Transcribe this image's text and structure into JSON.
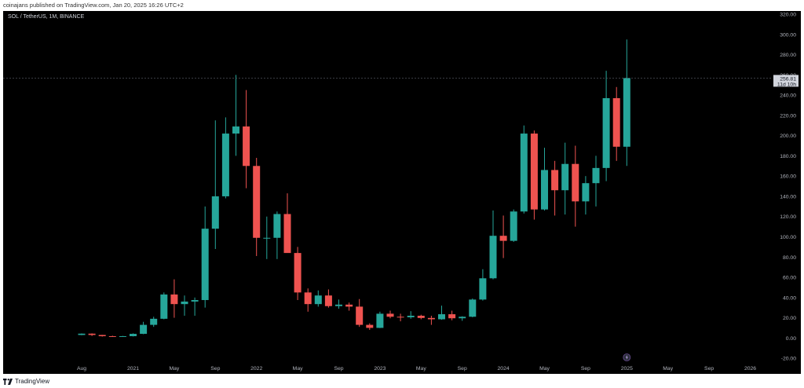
{
  "header": {
    "published": "coinajans published on TradingView.com, Jan 20, 2025 16:26 UTC+2"
  },
  "symbol_info": "SOL / TetherUS, 1M, BINANCE",
  "footer": {
    "brand": "TradingView"
  },
  "colors": {
    "up": "#26a69a",
    "down": "#ef5350",
    "background": "#000000",
    "axis_text": "#b2b5be"
  },
  "last_price": {
    "value": "256.81",
    "countdown": "11d 10h"
  },
  "chart_data": {
    "type": "candlestick",
    "title": "",
    "ylim": [
      -30,
      320
    ],
    "y_ticks": [
      "320.00",
      "300.00",
      "280.00",
      "260.00",
      "240.00",
      "220.00",
      "200.00",
      "180.00",
      "160.00",
      "140.00",
      "120.00",
      "100.00",
      "80.00",
      "60.00",
      "40.00",
      "20.00",
      "0.00",
      "-20.00"
    ],
    "x_ticks": [
      {
        "label": "Aug",
        "month": "2020-08"
      },
      {
        "label": "2021",
        "month": "2021-01"
      },
      {
        "label": "May",
        "month": "2021-05"
      },
      {
        "label": "Sep",
        "month": "2021-09"
      },
      {
        "label": "2022",
        "month": "2022-01"
      },
      {
        "label": "May",
        "month": "2022-05"
      },
      {
        "label": "Sep",
        "month": "2022-09"
      },
      {
        "label": "2023",
        "month": "2023-01"
      },
      {
        "label": "May",
        "month": "2023-05"
      },
      {
        "label": "Sep",
        "month": "2023-09"
      },
      {
        "label": "2024",
        "month": "2024-01"
      },
      {
        "label": "May",
        "month": "2024-05"
      },
      {
        "label": "Sep",
        "month": "2024-09"
      },
      {
        "label": "2025",
        "month": "2025-01"
      },
      {
        "label": "May",
        "month": "2025-05"
      },
      {
        "label": "Sep",
        "month": "2025-09"
      },
      {
        "label": "2026",
        "month": "2026-01"
      }
    ],
    "candles": [
      {
        "t": "2020-08",
        "o": 3.0,
        "h": 4.5,
        "l": 2.8,
        "c": 4.3
      },
      {
        "t": "2020-09",
        "o": 4.3,
        "h": 4.6,
        "l": 2.0,
        "c": 3.0
      },
      {
        "t": "2020-10",
        "o": 3.0,
        "h": 3.1,
        "l": 1.4,
        "c": 1.8
      },
      {
        "t": "2020-11",
        "o": 1.8,
        "h": 2.3,
        "l": 1.1,
        "c": 1.5
      },
      {
        "t": "2020-12",
        "o": 1.5,
        "h": 2.1,
        "l": 1.3,
        "c": 1.8
      },
      {
        "t": "2021-01",
        "o": 1.8,
        "h": 4.5,
        "l": 1.5,
        "c": 4.1
      },
      {
        "t": "2021-02",
        "o": 4.1,
        "h": 16.0,
        "l": 3.8,
        "c": 13.0
      },
      {
        "t": "2021-03",
        "o": 13.0,
        "h": 21.0,
        "l": 11.0,
        "c": 19.0
      },
      {
        "t": "2021-04",
        "o": 19.0,
        "h": 45.0,
        "l": 18.5,
        "c": 43.0
      },
      {
        "t": "2021-05",
        "o": 43.0,
        "h": 58.0,
        "l": 20.0,
        "c": 33.5
      },
      {
        "t": "2021-06",
        "o": 33.5,
        "h": 42.0,
        "l": 22.0,
        "c": 36.0
      },
      {
        "t": "2021-07",
        "o": 36.0,
        "h": 40.0,
        "l": 22.0,
        "c": 37.5
      },
      {
        "t": "2021-08",
        "o": 37.5,
        "h": 130.0,
        "l": 30.0,
        "c": 108.0
      },
      {
        "t": "2021-09",
        "o": 108.0,
        "h": 215.0,
        "l": 88.0,
        "c": 140.0
      },
      {
        "t": "2021-10",
        "o": 140.0,
        "h": 218.0,
        "l": 138.0,
        "c": 202.0
      },
      {
        "t": "2021-11",
        "o": 202.0,
        "h": 260.0,
        "l": 180.0,
        "c": 209.0
      },
      {
        "t": "2021-12",
        "o": 209.0,
        "h": 245.0,
        "l": 148.0,
        "c": 170.0
      },
      {
        "t": "2022-01",
        "o": 170.0,
        "h": 178.0,
        "l": 81.0,
        "c": 99.0
      },
      {
        "t": "2022-02",
        "o": 99.0,
        "h": 120.0,
        "l": 78.0,
        "c": 99.0
      },
      {
        "t": "2022-03",
        "o": 99.0,
        "h": 125.0,
        "l": 78.0,
        "c": 122.5
      },
      {
        "t": "2022-04",
        "o": 122.5,
        "h": 143.0,
        "l": 85.0,
        "c": 84.0
      },
      {
        "t": "2022-05",
        "o": 84.0,
        "h": 90.0,
        "l": 37.5,
        "c": 45.0
      },
      {
        "t": "2022-06",
        "o": 45.0,
        "h": 49.0,
        "l": 26.0,
        "c": 33.5
      },
      {
        "t": "2022-07",
        "o": 33.5,
        "h": 47.0,
        "l": 31.0,
        "c": 42.0
      },
      {
        "t": "2022-08",
        "o": 42.0,
        "h": 48.0,
        "l": 30.0,
        "c": 31.5
      },
      {
        "t": "2022-09",
        "o": 31.5,
        "h": 38.0,
        "l": 29.0,
        "c": 33.0
      },
      {
        "t": "2022-10",
        "o": 33.0,
        "h": 35.0,
        "l": 27.0,
        "c": 31.0
      },
      {
        "t": "2022-11",
        "o": 31.0,
        "h": 38.5,
        "l": 11.0,
        "c": 13.0
      },
      {
        "t": "2022-12",
        "o": 13.0,
        "h": 14.5,
        "l": 8.0,
        "c": 10.0
      },
      {
        "t": "2023-01",
        "o": 10.0,
        "h": 26.0,
        "l": 9.8,
        "c": 24.0
      },
      {
        "t": "2023-02",
        "o": 24.0,
        "h": 27.0,
        "l": 19.5,
        "c": 21.0
      },
      {
        "t": "2023-03",
        "o": 21.0,
        "h": 24.0,
        "l": 16.5,
        "c": 20.5
      },
      {
        "t": "2023-04",
        "o": 20.5,
        "h": 26.5,
        "l": 19.0,
        "c": 22.0
      },
      {
        "t": "2023-05",
        "o": 22.0,
        "h": 23.0,
        "l": 18.5,
        "c": 19.8
      },
      {
        "t": "2023-06",
        "o": 19.8,
        "h": 22.0,
        "l": 13.0,
        "c": 18.5
      },
      {
        "t": "2023-07",
        "o": 18.5,
        "h": 32.0,
        "l": 18.0,
        "c": 23.5
      },
      {
        "t": "2023-08",
        "o": 23.5,
        "h": 27.0,
        "l": 17.5,
        "c": 19.5
      },
      {
        "t": "2023-09",
        "o": 19.5,
        "h": 21.5,
        "l": 17.0,
        "c": 21.0
      },
      {
        "t": "2023-10",
        "o": 21.0,
        "h": 39.0,
        "l": 20.5,
        "c": 38.0
      },
      {
        "t": "2023-11",
        "o": 38.0,
        "h": 68.0,
        "l": 37.0,
        "c": 59.0
      },
      {
        "t": "2023-12",
        "o": 59.0,
        "h": 126.0,
        "l": 58.0,
        "c": 101.0
      },
      {
        "t": "2024-01",
        "o": 101.0,
        "h": 121.0,
        "l": 79.0,
        "c": 96.0
      },
      {
        "t": "2024-02",
        "o": 96.0,
        "h": 127.0,
        "l": 95.0,
        "c": 125.0
      },
      {
        "t": "2024-03",
        "o": 125.0,
        "h": 210.0,
        "l": 123.0,
        "c": 202.0
      },
      {
        "t": "2024-04",
        "o": 202.0,
        "h": 205.0,
        "l": 117.0,
        "c": 127.0
      },
      {
        "t": "2024-05",
        "o": 127.0,
        "h": 188.0,
        "l": 126.0,
        "c": 166.0
      },
      {
        "t": "2024-06",
        "o": 166.0,
        "h": 175.0,
        "l": 121.0,
        "c": 146.0
      },
      {
        "t": "2024-07",
        "o": 146.0,
        "h": 193.0,
        "l": 122.0,
        "c": 172.0
      },
      {
        "t": "2024-08",
        "o": 172.0,
        "h": 190.0,
        "l": 110.0,
        "c": 135.0
      },
      {
        "t": "2024-09",
        "o": 135.0,
        "h": 160.0,
        "l": 122.0,
        "c": 153.0
      },
      {
        "t": "2024-10",
        "o": 153.0,
        "h": 180.0,
        "l": 130.0,
        "c": 168.0
      },
      {
        "t": "2024-11",
        "o": 168.0,
        "h": 264.0,
        "l": 155.0,
        "c": 237.0
      },
      {
        "t": "2024-12",
        "o": 237.0,
        "h": 248.0,
        "l": 175.0,
        "c": 189.0
      },
      {
        "t": "2025-01",
        "o": 189.0,
        "h": 295.0,
        "l": 170.0,
        "c": 256.81
      }
    ]
  }
}
